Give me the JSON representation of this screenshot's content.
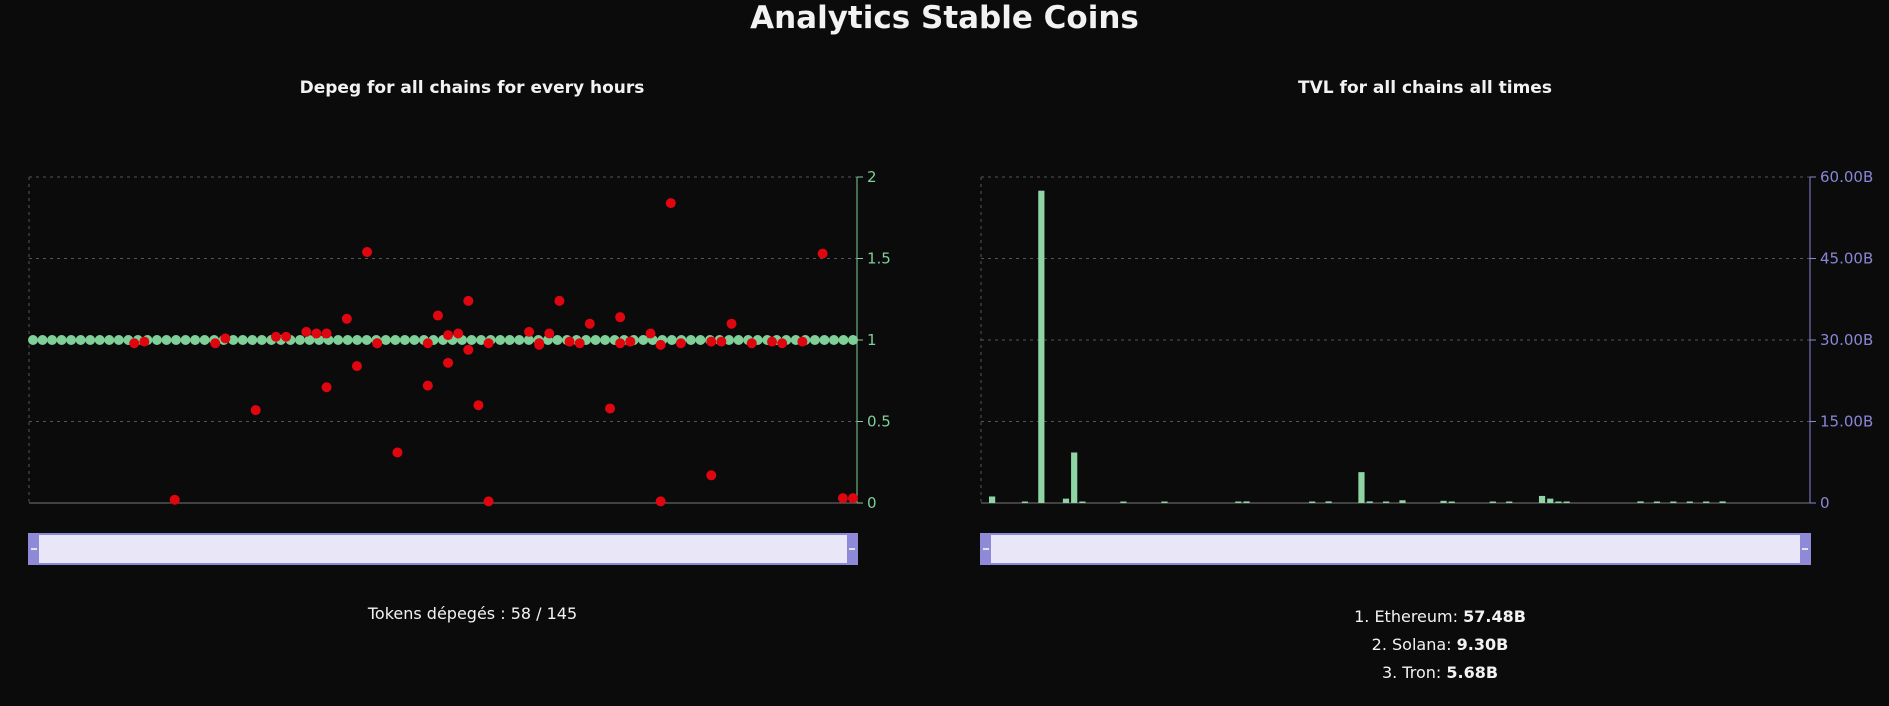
{
  "page": {
    "title": "Analytics Stable Coins"
  },
  "colors": {
    "background": "#0b0b0c",
    "depeg_point": "#e0060f",
    "stable_point": "#7fcf98",
    "tvl_bar": "#8fd4a4",
    "left_axis": "#7fcf98",
    "right_axis": "#8a86d6",
    "slider_fill": "#e8e6f7",
    "slider_border": "#8e8ad8",
    "grid": "#555555"
  },
  "left_panel": {
    "title": "Depeg for all chains for every hours",
    "summary_label": "Tokens dépegés : 58 / 145"
  },
  "right_panel": {
    "title": "TVL for all chains all times",
    "ranking": [
      {
        "label": "1. Ethereum: ",
        "value": "57.48B"
      },
      {
        "label": "2. Solana: ",
        "value": "9.30B"
      },
      {
        "label": "3. Tron: ",
        "value": "5.68B"
      }
    ]
  },
  "chart_data": [
    {
      "type": "scatter",
      "title": "Depeg for all chains for every hours",
      "xlabel": "",
      "ylabel": "",
      "ylim": [
        0,
        2
      ],
      "y_ticks": [
        "0",
        "0.5",
        "1",
        "1.5",
        "2"
      ],
      "grid": true,
      "legend": "none",
      "x_slider": true,
      "stable_points": {
        "count": 87,
        "value": 1.0
      },
      "depeg_points": {
        "x": [
          10,
          11,
          14,
          18,
          19,
          22,
          24,
          25,
          27,
          28,
          29,
          29,
          31,
          32,
          33,
          34,
          34,
          36,
          39,
          39,
          40,
          41,
          41,
          42,
          43,
          43,
          44,
          45,
          45,
          49,
          50,
          50,
          51,
          52,
          53,
          54,
          55,
          57,
          58,
          58,
          59,
          59,
          61,
          62,
          62,
          63,
          64,
          67,
          67,
          68,
          69,
          71,
          73,
          74,
          76,
          78,
          80,
          81
        ],
        "y": [
          0.98,
          0.99,
          0.02,
          0.98,
          1.01,
          0.57,
          1.02,
          1.02,
          1.05,
          1.04,
          0.71,
          1.04,
          1.13,
          0.84,
          1.54,
          0.98,
          0.98,
          0.31,
          0.98,
          0.72,
          1.15,
          1.03,
          0.86,
          1.04,
          1.24,
          0.94,
          0.6,
          0.01,
          0.98,
          1.05,
          0.97,
          0.98,
          1.04,
          1.24,
          0.99,
          0.98,
          1.1,
          0.58,
          0.98,
          1.14,
          0.99,
          0.99,
          1.04,
          0.01,
          0.97,
          1.84,
          0.98,
          0.17,
          0.99,
          0.99,
          1.1,
          0.98,
          0.99,
          0.98,
          0.99,
          1.53,
          0.03,
          0.03
        ]
      }
    },
    {
      "type": "bar",
      "title": "TVL for all chains all times",
      "xlabel": "",
      "ylabel": "",
      "ylim": [
        0,
        60
      ],
      "y_unit": "B",
      "y_ticks": [
        "0",
        "15.00B",
        "30.00B",
        "45.00B",
        "60.00B"
      ],
      "grid": true,
      "legend": "none",
      "x_slider": true,
      "values": [
        1.2,
        0.0,
        0.0,
        0.0,
        0.1,
        0.0,
        57.48,
        0.0,
        0.0,
        0.8,
        9.3,
        0.1,
        0.0,
        0.0,
        0.0,
        0.0,
        0.2,
        0.0,
        0.0,
        0.0,
        0.0,
        0.1,
        0.0,
        0.0,
        0.0,
        0.0,
        0.0,
        0.0,
        0.0,
        0.0,
        0.2,
        0.3,
        0.0,
        0.0,
        0.0,
        0.0,
        0.0,
        0.0,
        0.0,
        0.1,
        0.0,
        0.3,
        0.0,
        0.0,
        0.0,
        5.68,
        0.3,
        0.0,
        0.2,
        0.0,
        0.5,
        0.0,
        0.0,
        0.0,
        0.0,
        0.4,
        0.1,
        0.0,
        0.0,
        0.0,
        0.0,
        0.1,
        0.0,
        0.1,
        0.0,
        0.0,
        0.0,
        1.3,
        0.8,
        0.1,
        0.2,
        0.0,
        0.0,
        0.0,
        0.0,
        0.0,
        0.0,
        0.0,
        0.0,
        0.3,
        0.0,
        0.1,
        0.0,
        0.1,
        0.0,
        0.2,
        0.0,
        0.2,
        0.0,
        0.3,
        0.0,
        0.0,
        0.0,
        0.0,
        0.0,
        0.0,
        0.0,
        0.0,
        0.0,
        0.0,
        0.0
      ]
    }
  ]
}
